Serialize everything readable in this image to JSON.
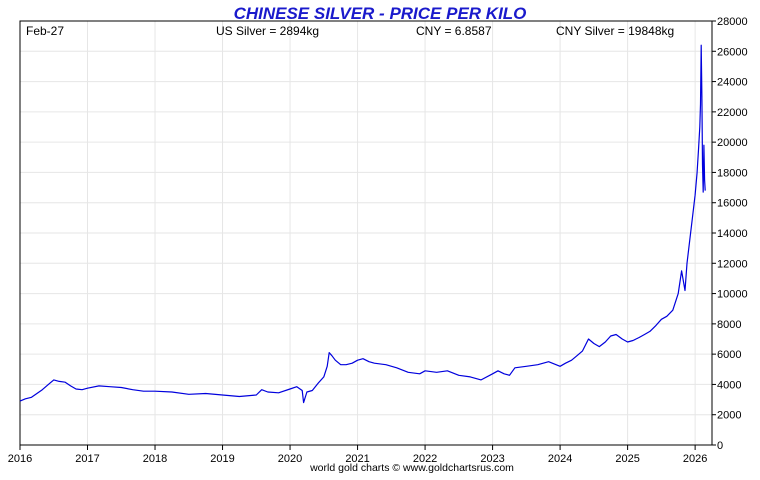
{
  "chart_data": {
    "type": "line",
    "title": "CHINESE SILVER - PRICE PER KILO",
    "header": {
      "date": "Feb-27",
      "us_silver": "US Silver = 2894kg",
      "cny": "CNY = 6.8587",
      "cny_silver": "CNY Silver = 19848kg"
    },
    "footer": "world gold charts © www.goldchartsrus.com",
    "x_axis": {
      "min": 2016.0,
      "max": 2026.25,
      "tick_labels": [
        "2016",
        "2017",
        "2018",
        "2019",
        "2020",
        "2021",
        "2022",
        "2023",
        "2024",
        "2025",
        "2026"
      ]
    },
    "y_axis": {
      "min": 0,
      "max": 28000,
      "side": "right",
      "tick_labels": [
        "0",
        "2000",
        "4000",
        "6000",
        "8000",
        "10000",
        "12000",
        "14000",
        "16000",
        "18000",
        "20000",
        "22000",
        "24000",
        "26000",
        "28000"
      ]
    },
    "grid": true,
    "colors": {
      "line": "#0000dd",
      "title": "#1a1acc",
      "grid": "#e6e6e6"
    },
    "series": [
      {
        "x": [
          2016.0,
          2016.08,
          2016.17,
          2016.25,
          2016.33,
          2016.42,
          2016.5,
          2016.58,
          2016.67,
          2016.75,
          2016.83,
          2016.92,
          2017.0,
          2017.17,
          2017.33,
          2017.5,
          2017.67,
          2017.83,
          2018.0,
          2018.25,
          2018.5,
          2018.75,
          2019.0,
          2019.25,
          2019.5,
          2019.58,
          2019.67,
          2019.83,
          2020.0,
          2020.1,
          2020.18,
          2020.2,
          2020.25,
          2020.33,
          2020.42,
          2020.5,
          2020.55,
          2020.58,
          2020.62,
          2020.67,
          2020.75,
          2020.83,
          2020.92,
          2021.0,
          2021.08,
          2021.17,
          2021.25,
          2021.42,
          2021.58,
          2021.75,
          2021.92,
          2022.0,
          2022.17,
          2022.33,
          2022.5,
          2022.67,
          2022.83,
          2023.0,
          2023.08,
          2023.17,
          2023.25,
          2023.33,
          2023.5,
          2023.67,
          2023.83,
          2024.0,
          2024.08,
          2024.17,
          2024.25,
          2024.33,
          2024.42,
          2024.5,
          2024.58,
          2024.67,
          2024.75,
          2024.83,
          2024.92,
          2025.0,
          2025.08,
          2025.17,
          2025.25,
          2025.33,
          2025.42,
          2025.5,
          2025.58,
          2025.67,
          2025.75,
          2025.8,
          2025.85,
          2025.88,
          2025.92,
          2025.96,
          2026.0,
          2026.03,
          2026.05,
          2026.07,
          2026.08,
          2026.09,
          2026.1,
          2026.11,
          2026.12,
          2026.13,
          2026.14,
          2026.15
        ],
        "y": [
          2900,
          3050,
          3150,
          3400,
          3650,
          4000,
          4300,
          4200,
          4150,
          3900,
          3700,
          3650,
          3750,
          3900,
          3850,
          3800,
          3650,
          3550,
          3550,
          3500,
          3350,
          3400,
          3300,
          3200,
          3300,
          3650,
          3500,
          3450,
          3700,
          3850,
          3600,
          2800,
          3500,
          3600,
          4100,
          4500,
          5200,
          6100,
          5900,
          5600,
          5300,
          5300,
          5400,
          5600,
          5700,
          5500,
          5400,
          5300,
          5100,
          4800,
          4700,
          4900,
          4800,
          4900,
          4600,
          4500,
          4300,
          4700,
          4900,
          4700,
          4600,
          5100,
          5200,
          5300,
          5500,
          5200,
          5400,
          5600,
          5900,
          6200,
          7000,
          6700,
          6500,
          6800,
          7200,
          7300,
          7000,
          6800,
          6900,
          7100,
          7300,
          7500,
          7900,
          8300,
          8500,
          8900,
          10000,
          11500,
          10200,
          12000,
          13500,
          15000,
          16500,
          18000,
          19500,
          21000,
          22500,
          26400,
          23000,
          18500,
          16700,
          19800,
          17500,
          16800
        ]
      }
    ]
  }
}
